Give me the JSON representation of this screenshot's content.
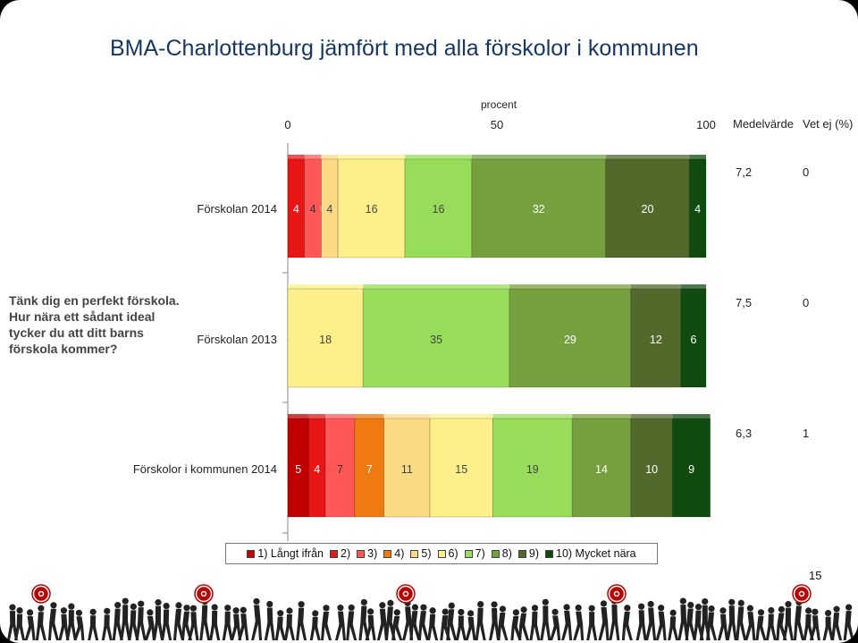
{
  "title": "BMA-Charlottenburg jämfört med alla förskolor i kommunen",
  "question": "Tänk dig en perfekt förskola. Hur nära ett sådant ideal tycker du att ditt barns förskola kommer?",
  "page_number": "15",
  "chart_data": {
    "type": "bar",
    "stacked": true,
    "orientation": "horizontal",
    "xlabel": "procent",
    "xlim": [
      0,
      100
    ],
    "xticks": [
      "0",
      "50",
      "100"
    ],
    "column_headers": [
      "Medelvärde",
      "Vet ej (%)"
    ],
    "categories": [
      "Förskolan 2014",
      "Förskolan 2013",
      "Förskolor i kommunen 2014"
    ],
    "series": [
      {
        "name": "1) Långt ifrån",
        "color": "#c00000",
        "values": [
          0,
          0,
          5
        ]
      },
      {
        "name": "2)",
        "color": "#e81515",
        "values": [
          4,
          0,
          4
        ]
      },
      {
        "name": "3)",
        "color": "#ff5757",
        "values": [
          4,
          0,
          7
        ]
      },
      {
        "name": "4)",
        "color": "#ee7a10",
        "values": [
          0,
          0,
          7
        ]
      },
      {
        "name": "5)",
        "color": "#fcd985",
        "values": [
          4,
          0,
          11
        ]
      },
      {
        "name": "6)",
        "color": "#fdf08a",
        "values": [
          16,
          18,
          15
        ]
      },
      {
        "name": "7)",
        "color": "#98dd5a",
        "values": [
          16,
          35,
          19
        ]
      },
      {
        "name": "8)",
        "color": "#76a03e",
        "values": [
          32,
          29,
          14
        ]
      },
      {
        "name": "9)",
        "color": "#51692b",
        "values": [
          20,
          12,
          10
        ]
      },
      {
        "name": "10) Mycket nära",
        "color": "#0f4a0f",
        "values": [
          4,
          6,
          9
        ]
      }
    ],
    "mean": [
      "7,2",
      "7,5",
      "6,3"
    ],
    "dont_know": [
      "0",
      "0",
      "1"
    ],
    "legend_position": "bottom",
    "grid": false
  }
}
